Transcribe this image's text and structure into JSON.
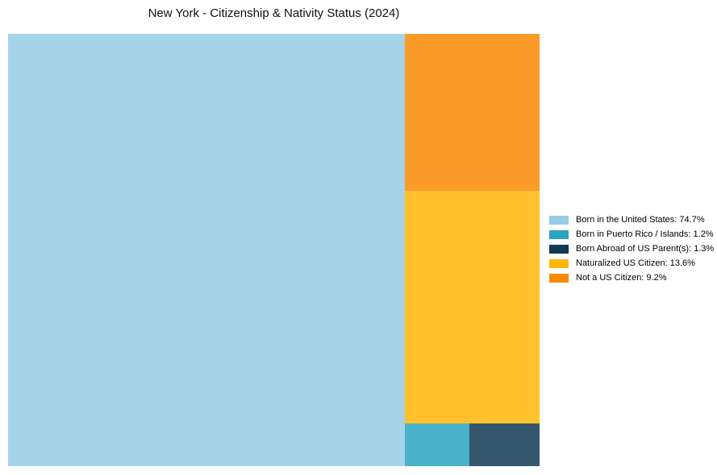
{
  "page": {
    "background": "#ffffff",
    "title_color": "#111111",
    "legend_text_color": "#000000"
  },
  "chart_data": {
    "type": "treemap",
    "title": "New York - Citizenship & Nativity Status (2024)",
    "unit": "%",
    "legend_position": "right",
    "tile_fill_opacity": 0.85,
    "series": [
      {
        "name": "Born in the United States",
        "value": 74.7,
        "color": "#95CDE5",
        "legend_label": "Born in the United States: 74.7%"
      },
      {
        "name": "Born in Puerto Rico / Islands",
        "value": 1.2,
        "color": "#2AA3C1",
        "legend_label": "Born in Puerto Rico / Islands: 1.2%"
      },
      {
        "name": "Born Abroad of US Parent(s)",
        "value": 1.3,
        "color": "#113A53",
        "legend_label": "Born Abroad of US Parent(s): 1.3%"
      },
      {
        "name": "Naturalized US Citizen",
        "value": 13.6,
        "color": "#FFB607",
        "legend_label": "Naturalized US Citizen: 13.6%"
      },
      {
        "name": "Not a US Citizen",
        "value": 9.2,
        "color": "#FA8A05",
        "legend_label": "Not a US Citizen: 9.2%"
      }
    ]
  }
}
